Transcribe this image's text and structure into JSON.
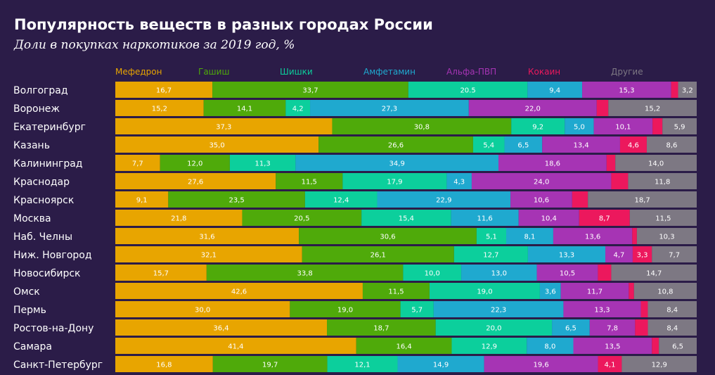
{
  "chart_data": {
    "type": "bar",
    "title": "Популярность веществ в разных городах России",
    "subtitle": "Доли в покупках наркотиков за 2019 год, %",
    "orientation": "horizontal",
    "stacked": true,
    "legend_position": "top",
    "categories": [
      "Волгоград",
      "Воронеж",
      "Екатеринбург",
      "Казань",
      "Калининград",
      "Краснодар",
      "Красноярск",
      "Москва",
      "Наб. Челны",
      "Ниж. Новгород",
      "Новосибирск",
      "Омск",
      "Пермь",
      "Ростов-на-Дону",
      "Самара",
      "Санкт-Петербург"
    ],
    "series": [
      {
        "name": "Мефедрон",
        "color": "#e8a500",
        "values": [
          16.7,
          15.2,
          37.3,
          35.0,
          7.7,
          27.6,
          9.1,
          21.8,
          31.6,
          32.1,
          15.7,
          42.6,
          30.0,
          36.4,
          41.4,
          16.8
        ]
      },
      {
        "name": "Гашиш",
        "color": "#4faa0a",
        "values": [
          33.7,
          14.1,
          30.8,
          26.6,
          12.0,
          11.5,
          23.5,
          20.5,
          30.6,
          26.1,
          33.8,
          11.5,
          19.0,
          18.7,
          16.4,
          19.7
        ]
      },
      {
        "name": "Шишки",
        "color": "#0ccf9c",
        "values": [
          20.5,
          4.2,
          9.2,
          5.4,
          11.3,
          17.9,
          12.4,
          15.4,
          5.1,
          12.7,
          10.0,
          19.0,
          5.7,
          20.0,
          12.9,
          12.1
        ]
      },
      {
        "name": "Амфетамин",
        "color": "#1fa9cf",
        "values": [
          9.4,
          27.3,
          5.0,
          6.5,
          34.9,
          4.3,
          22.9,
          11.6,
          8.1,
          13.3,
          13.0,
          3.6,
          22.3,
          6.5,
          8.0,
          14.9
        ]
      },
      {
        "name": "Альфа-ПВП",
        "color": "#a634b4",
        "values": [
          15.3,
          22.0,
          10.1,
          13.4,
          18.6,
          24.0,
          10.6,
          10.4,
          13.6,
          4.7,
          10.5,
          11.7,
          13.3,
          7.8,
          13.5,
          19.6
        ]
      },
      {
        "name": "Кокаин",
        "color": "#ec185d",
        "values": [
          1.2,
          2.0,
          1.7,
          4.6,
          1.5,
          2.9,
          2.7,
          8.7,
          0.8,
          3.3,
          2.3,
          0.9,
          1.2,
          2.2,
          1.2,
          4.1
        ]
      },
      {
        "name": "Другие",
        "color": "#7d7883",
        "values": [
          3.2,
          15.2,
          5.9,
          8.6,
          14.0,
          11.8,
          18.7,
          11.5,
          10.3,
          7.7,
          14.7,
          10.8,
          8.4,
          8.4,
          6.5,
          12.9
        ]
      }
    ],
    "data_labels": [
      [
        "16,7",
        "33,7",
        "20.5",
        "9,4",
        "15,3",
        "",
        "3,2"
      ],
      [
        "15,2",
        "14,1",
        "4,2",
        "27,3",
        "22,0",
        "",
        "15,2"
      ],
      [
        "37,3",
        "30,8",
        "9,2",
        "5,0",
        "10,1",
        "",
        "5,9"
      ],
      [
        "35,0",
        "26,6",
        "5,4",
        "6,5",
        "13,4",
        "4,6",
        "8,6"
      ],
      [
        "7,7",
        "12,0",
        "11,3",
        "34,9",
        "18,6",
        "",
        "14,0"
      ],
      [
        "27,6",
        "11,5",
        "17,9",
        "4,3",
        "24,0",
        "",
        "11,8"
      ],
      [
        "9,1",
        "23,5",
        "12,4",
        "22,9",
        "10,6",
        "",
        "18,7"
      ],
      [
        "21,8",
        "20,5",
        "15,4",
        "11,6",
        "10,4",
        "8,7",
        "11,5"
      ],
      [
        "31,6",
        "30,6",
        "5,1",
        "8,1",
        "13,6",
        "",
        "10,3"
      ],
      [
        "32,1",
        "26,1",
        "12,7",
        "13,3",
        "4,7",
        "3,3",
        "7,7"
      ],
      [
        "15,7",
        "33,8",
        "10,0",
        "13,0",
        "10,5",
        "",
        "14,7"
      ],
      [
        "42,6",
        "11,5",
        "19,0",
        "3,6",
        "11,7",
        "",
        "10,8"
      ],
      [
        "30,0",
        "19,0",
        "5,7",
        "22,3",
        "13,3",
        "",
        "8,4"
      ],
      [
        "36,4",
        "18,7",
        "20,0",
        "6,5",
        "7,8",
        "",
        "8,4"
      ],
      [
        "41,4",
        "16,4",
        "12,9",
        "8,0",
        "13,5",
        "",
        "6,5"
      ],
      [
        "16,8",
        "19,7",
        "12,1",
        "14,9",
        "19,6",
        "4,1",
        "12,9"
      ]
    ]
  }
}
